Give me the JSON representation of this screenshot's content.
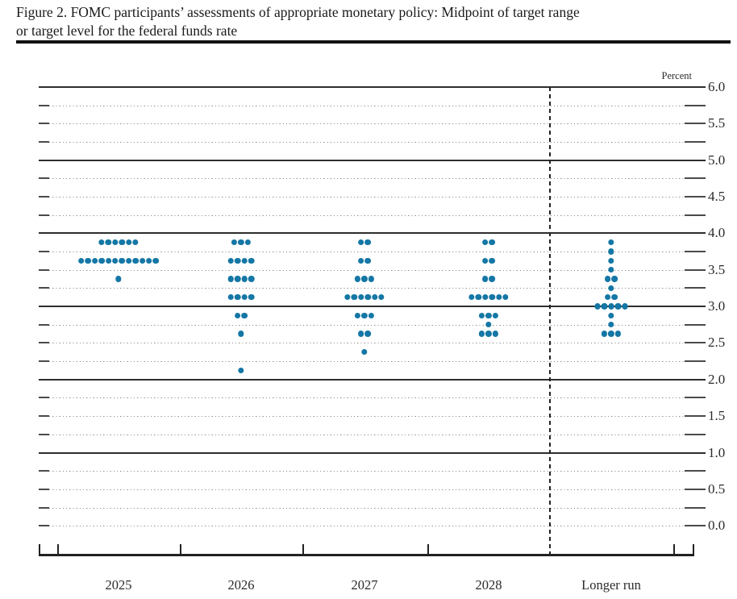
{
  "title": {
    "line1": "Figure 2. FOMC participants’ assessments of appropriate monetary policy: Midpoint of target range",
    "line2": "or target level for the federal funds rate"
  },
  "chart_data": {
    "type": "scatter",
    "subtype": "fomc-dot-plot",
    "title": "FOMC participants’ assessments of appropriate monetary policy: Midpoint of target range or target level for the federal funds rate",
    "ylabel": "Percent",
    "ylim": [
      0.0,
      6.0
    ],
    "y_label_step": 0.5,
    "y_grid_step": 0.25,
    "y_axis_labels": [
      "6.0",
      "5.5",
      "5.0",
      "4.5",
      "4.0",
      "3.5",
      "3.0",
      "2.5",
      "2.0",
      "1.5",
      "1.0",
      "0.5",
      "0.0"
    ],
    "grid": "dotted quarter lines, solid integer lines, 0.0 dotted",
    "legend": "none",
    "categories": [
      "2025",
      "2026",
      "2027",
      "2028",
      "Longer run"
    ],
    "series": [
      {
        "category": "2025",
        "dots": [
          {
            "rate": 3.875,
            "count": 6
          },
          {
            "rate": 3.625,
            "count": 12
          },
          {
            "rate": 3.375,
            "count": 1
          }
        ]
      },
      {
        "category": "2026",
        "dots": [
          {
            "rate": 3.875,
            "count": 3
          },
          {
            "rate": 3.625,
            "count": 4
          },
          {
            "rate": 3.375,
            "count": 4
          },
          {
            "rate": 3.125,
            "count": 4
          },
          {
            "rate": 2.875,
            "count": 2
          },
          {
            "rate": 2.625,
            "count": 1
          },
          {
            "rate": 2.125,
            "count": 1
          }
        ]
      },
      {
        "category": "2027",
        "dots": [
          {
            "rate": 3.875,
            "count": 2
          },
          {
            "rate": 3.625,
            "count": 2
          },
          {
            "rate": 3.375,
            "count": 3
          },
          {
            "rate": 3.125,
            "count": 6
          },
          {
            "rate": 2.875,
            "count": 3
          },
          {
            "rate": 2.625,
            "count": 2
          },
          {
            "rate": 2.375,
            "count": 1
          }
        ]
      },
      {
        "category": "2028",
        "dots": [
          {
            "rate": 3.875,
            "count": 2
          },
          {
            "rate": 3.625,
            "count": 2
          },
          {
            "rate": 3.375,
            "count": 2
          },
          {
            "rate": 3.125,
            "count": 6
          },
          {
            "rate": 2.875,
            "count": 3
          },
          {
            "rate": 2.75,
            "count": 1
          },
          {
            "rate": 2.625,
            "count": 3
          }
        ]
      },
      {
        "category": "Longer run",
        "dots": [
          {
            "rate": 3.875,
            "count": 1
          },
          {
            "rate": 3.75,
            "count": 1
          },
          {
            "rate": 3.625,
            "count": 1
          },
          {
            "rate": 3.5,
            "count": 1
          },
          {
            "rate": 3.375,
            "count": 2
          },
          {
            "rate": 3.25,
            "count": 1
          },
          {
            "rate": 3.125,
            "count": 2
          },
          {
            "rate": 3.0,
            "count": 5
          },
          {
            "rate": 2.875,
            "count": 1
          },
          {
            "rate": 2.75,
            "count": 1
          },
          {
            "rate": 2.625,
            "count": 3
          }
        ]
      }
    ],
    "dot_color": "#1477a5"
  }
}
